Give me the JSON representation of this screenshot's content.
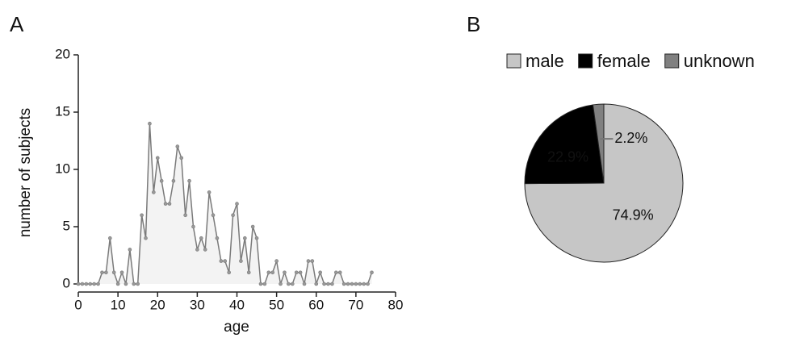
{
  "chart_data": [
    {
      "type": "line",
      "label": "A",
      "x": [
        0,
        1,
        2,
        3,
        4,
        5,
        6,
        7,
        8,
        9,
        10,
        11,
        12,
        13,
        14,
        15,
        16,
        17,
        18,
        19,
        20,
        21,
        22,
        23,
        24,
        25,
        26,
        27,
        28,
        29,
        30,
        31,
        32,
        33,
        34,
        35,
        36,
        37,
        38,
        39,
        40,
        41,
        42,
        43,
        44,
        45,
        46,
        47,
        48,
        49,
        50,
        51,
        52,
        53,
        54,
        55,
        56,
        57,
        58,
        59,
        60,
        61,
        62,
        63,
        64,
        65,
        66,
        67,
        68,
        69,
        70,
        71,
        72,
        73,
        74
      ],
      "values": [
        0,
        0,
        0,
        0,
        0,
        0,
        1,
        1,
        4,
        1,
        0,
        1,
        0,
        3,
        0,
        0,
        6,
        4,
        14,
        8,
        11,
        9,
        7,
        7,
        9,
        12,
        11,
        6,
        9,
        5,
        3,
        4,
        3,
        8,
        6,
        4,
        2,
        2,
        1,
        6,
        7,
        2,
        4,
        1,
        5,
        4,
        0,
        0,
        1,
        1,
        2,
        0,
        1,
        0,
        0,
        1,
        1,
        0,
        2,
        2,
        0,
        1,
        0,
        0,
        0,
        1,
        1,
        0,
        0,
        0,
        0,
        0,
        0,
        0,
        1
      ],
      "color": "#7a7a7a",
      "fill": "#f3f3f3",
      "xlabel": "age",
      "ylabel": "number of subjects",
      "xlim": [
        0,
        80
      ],
      "ylim": [
        0,
        20
      ],
      "xticks": [
        0,
        10,
        20,
        30,
        40,
        50,
        60,
        70,
        80
      ],
      "yticks": [
        0,
        5,
        10,
        15,
        20
      ]
    },
    {
      "type": "pie",
      "label": "B",
      "categories": [
        "male",
        "female",
        "unknown"
      ],
      "values": [
        74.9,
        22.9,
        2.2
      ],
      "value_labels": [
        "74.9%",
        "22.9%",
        "2.2%"
      ],
      "colors": [
        "#c6c6c6",
        "#000000",
        "#808080"
      ],
      "legend": "top"
    }
  ]
}
